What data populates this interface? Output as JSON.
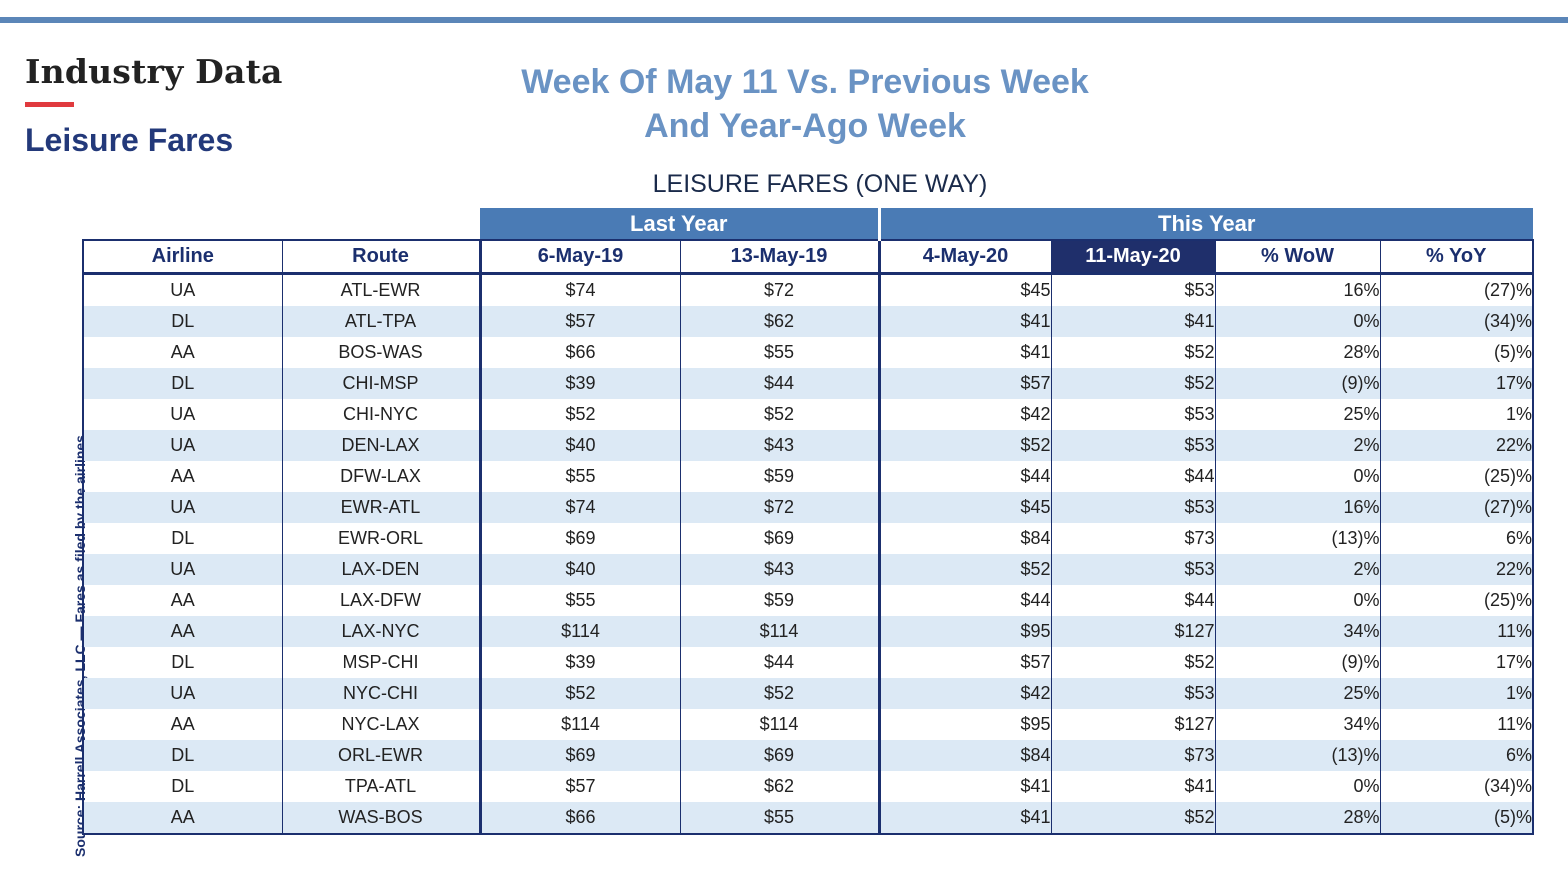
{
  "header": {
    "section_title": "Industry Data",
    "subsection_title": "Leisure Fares",
    "headline_line1": "Week Of May 11 Vs. Previous Week",
    "headline_line2": "And Year-Ago Week",
    "table_caption": "LEISURE FARES (ONE WAY)"
  },
  "source_note": "Source: Harrell Associates, LLC — Fares as filed by the airlines.",
  "colors": {
    "accent_rule": "#5b86b8",
    "red_rule": "#e03a3e",
    "group_header": "#4a7bb5",
    "highlight_header": "#1f2f6b",
    "stripe": "#dce9f5",
    "headline": "#6a93c4",
    "navy": "#23397a"
  },
  "table": {
    "groups": [
      "Last Year",
      "This Year"
    ],
    "columns": [
      "Airline",
      "Route",
      "6-May-19",
      "13-May-19",
      "4-May-20",
      "11-May-20",
      "% WoW",
      "% YoY"
    ],
    "rows": [
      [
        "UA",
        "ATL-EWR",
        "$74",
        "$72",
        "$45",
        "$53",
        "16%",
        "(27)%"
      ],
      [
        "DL",
        "ATL-TPA",
        "$57",
        "$62",
        "$41",
        "$41",
        "0%",
        "(34)%"
      ],
      [
        "AA",
        "BOS-WAS",
        "$66",
        "$55",
        "$41",
        "$52",
        "28%",
        "(5)%"
      ],
      [
        "DL",
        "CHI-MSP",
        "$39",
        "$44",
        "$57",
        "$52",
        "(9)%",
        "17%"
      ],
      [
        "UA",
        "CHI-NYC",
        "$52",
        "$52",
        "$42",
        "$53",
        "25%",
        "1%"
      ],
      [
        "UA",
        "DEN-LAX",
        "$40",
        "$43",
        "$52",
        "$53",
        "2%",
        "22%"
      ],
      [
        "AA",
        "DFW-LAX",
        "$55",
        "$59",
        "$44",
        "$44",
        "0%",
        "(25)%"
      ],
      [
        "UA",
        "EWR-ATL",
        "$74",
        "$72",
        "$45",
        "$53",
        "16%",
        "(27)%"
      ],
      [
        "DL",
        "EWR-ORL",
        "$69",
        "$69",
        "$84",
        "$73",
        "(13)%",
        "6%"
      ],
      [
        "UA",
        "LAX-DEN",
        "$40",
        "$43",
        "$52",
        "$53",
        "2%",
        "22%"
      ],
      [
        "AA",
        "LAX-DFW",
        "$55",
        "$59",
        "$44",
        "$44",
        "0%",
        "(25)%"
      ],
      [
        "AA",
        "LAX-NYC",
        "$114",
        "$114",
        "$95",
        "$127",
        "34%",
        "11%"
      ],
      [
        "DL",
        "MSP-CHI",
        "$39",
        "$44",
        "$57",
        "$52",
        "(9)%",
        "17%"
      ],
      [
        "UA",
        "NYC-CHI",
        "$52",
        "$52",
        "$42",
        "$53",
        "25%",
        "1%"
      ],
      [
        "AA",
        "NYC-LAX",
        "$114",
        "$114",
        "$95",
        "$127",
        "34%",
        "11%"
      ],
      [
        "DL",
        "ORL-EWR",
        "$69",
        "$69",
        "$84",
        "$73",
        "(13)%",
        "6%"
      ],
      [
        "DL",
        "TPA-ATL",
        "$57",
        "$62",
        "$41",
        "$41",
        "0%",
        "(34)%"
      ],
      [
        "AA",
        "WAS-BOS",
        "$66",
        "$55",
        "$41",
        "$52",
        "28%",
        "(5)%"
      ]
    ]
  }
}
